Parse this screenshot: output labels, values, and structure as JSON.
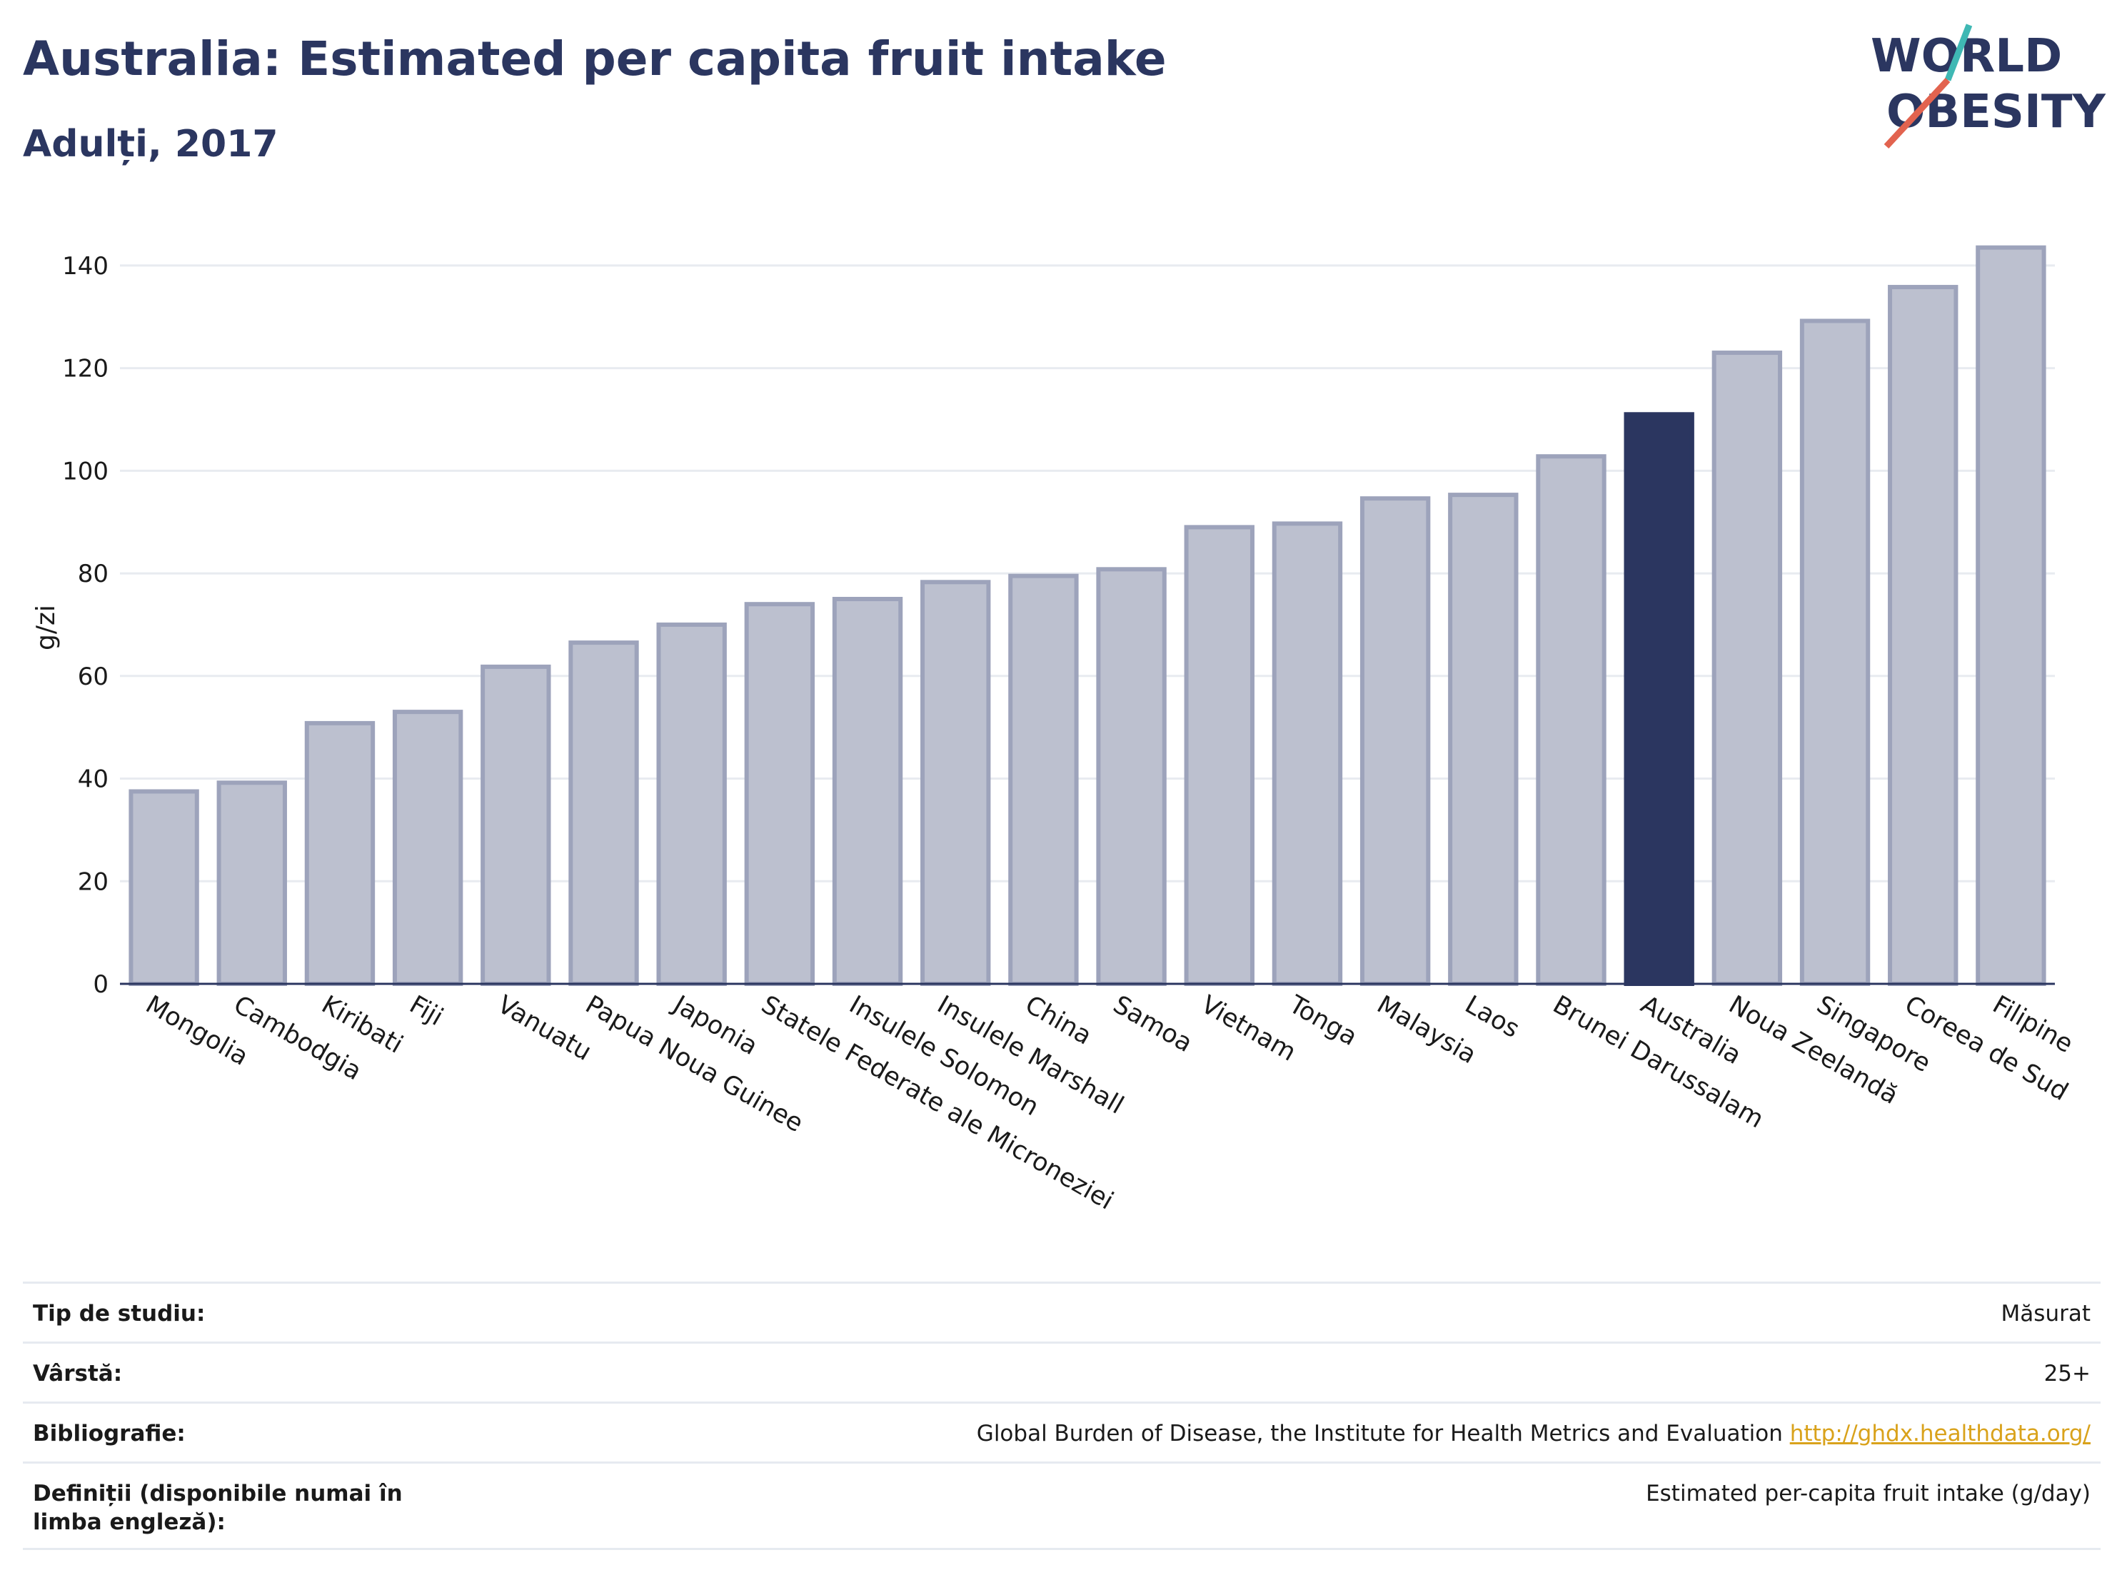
{
  "header": {
    "title": "Australia: Estimated per capita fruit intake",
    "subtitle": "Adulți, 2017"
  },
  "logo": {
    "line1": "WORLD",
    "line2": "OBESITY",
    "colors": {
      "text": "#2b3660",
      "slash_teal": "#3fb8b4",
      "slash_red": "#e2634f"
    }
  },
  "chart_data": {
    "type": "bar",
    "categories": [
      "Mongolia",
      "Cambodgia",
      "Kiribati",
      "Fiji",
      "Vanuatu",
      "Papua Noua Guinee",
      "Japonia",
      "Statele Federate ale Microneziei",
      "Insulele Solomon",
      "Insulele Marshall",
      "China",
      "Samoa",
      "Vietnam",
      "Tonga",
      "Malaysia",
      "Laos",
      "Brunei Darussalam",
      "Australia",
      "Noua Zeelandă",
      "Singapore",
      "Coreea de Sud",
      "Filipine"
    ],
    "values": [
      37.5,
      39.2,
      50.8,
      53.0,
      61.8,
      66.5,
      70.0,
      74.0,
      75.0,
      78.3,
      79.5,
      80.8,
      89.0,
      89.7,
      94.6,
      95.3,
      102.8,
      111.0,
      123.0,
      129.2,
      135.8,
      143.5
    ],
    "highlight": "Australia",
    "ylabel": "g/zi",
    "xlabel": "",
    "ylim": [
      0,
      150
    ],
    "yticks": [
      0,
      20,
      40,
      60,
      80,
      100,
      120,
      140
    ],
    "grid": true,
    "colors": {
      "bar": "#bcc0cf",
      "bar_border": "#9da3bb",
      "highlight": "#2b3660",
      "grid": "#e8ebf0",
      "axis": "#2b3660"
    }
  },
  "info": [
    {
      "label": "Tip de studiu:",
      "value": "Măsurat"
    },
    {
      "label": "Vârstă:",
      "value": "25+"
    },
    {
      "label": "Bibliografie:",
      "value": "Global Burden of Disease, the Institute for Health Metrics and Evaluation",
      "link": "http://ghdx.healthdata.org/"
    },
    {
      "label": "Definiții (disponibile numai în limba engleză):",
      "value": "Estimated per-capita fruit intake (g/day)"
    }
  ]
}
